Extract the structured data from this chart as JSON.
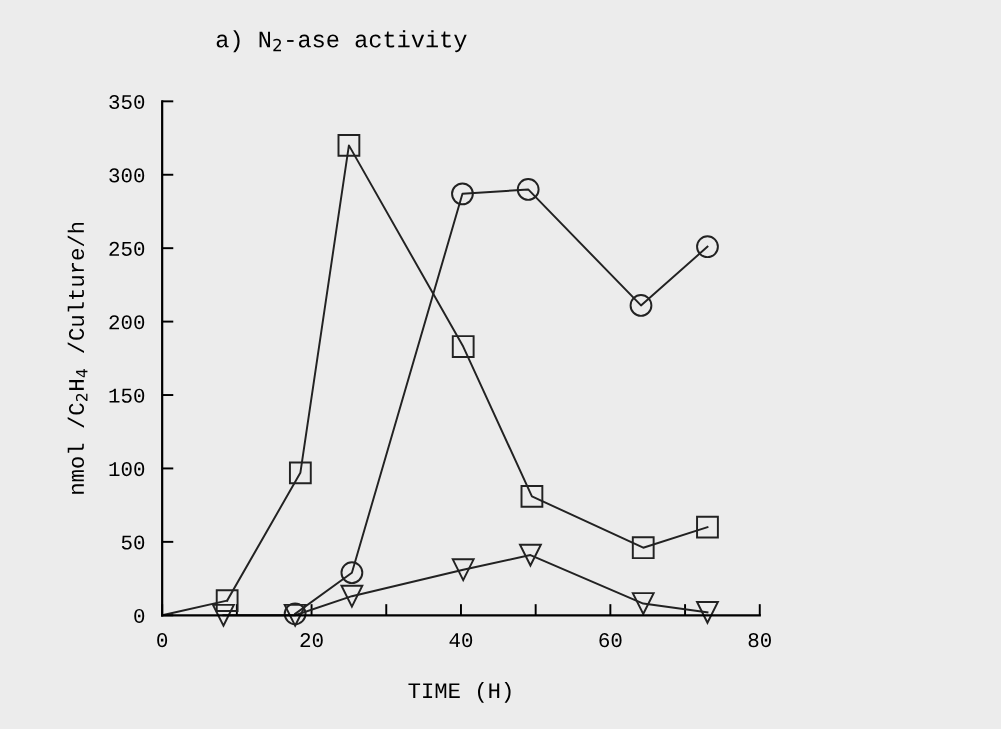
{
  "chart_data": {
    "type": "line",
    "title": "a) N$_{2}$-ase activity",
    "xlabel": "TIME (H)",
    "ylabel": "nmol /C$_{2}$H$_{4}$ /Culture/h",
    "series": [
      {
        "color": "#222222",
        "marker": "square",
        "x": [
          8.7,
          18.5,
          25,
          40.3,
          49.5,
          64.4,
          73
        ],
        "values": [
          10,
          97,
          320,
          183,
          81,
          46,
          60
        ]
      },
      {
        "color": "#222222",
        "marker": "circle",
        "x": [
          17.8,
          25.4,
          40.2,
          49,
          64.1,
          73
        ],
        "values": [
          1,
          29,
          287,
          290,
          211,
          251
        ]
      },
      {
        "color": "#222222",
        "marker": "triangle",
        "x": [
          8.2,
          17.8,
          25.4,
          40.3,
          49.3,
          64.4,
          73
        ],
        "values": [
          0,
          0,
          13,
          31,
          41,
          8,
          2
        ]
      },
      {
        "color": "#222222",
        "marker": "none",
        "x": [
          0,
          8.7
        ],
        "values": [
          0,
          10
        ]
      }
    ],
    "xlim": [
      0,
      80
    ],
    "ylim": [
      0,
      350
    ],
    "xticks": [
      0,
      {
        "value": 10,
        "label": null
      },
      20,
      {
        "value": 30,
        "label": null
      },
      40,
      {
        "value": 50,
        "label": null
      },
      60,
      {
        "value": 70,
        "label": null
      },
      80
    ],
    "yticks": [
      0,
      50,
      100,
      150,
      200,
      250,
      300,
      350
    ],
    "line_style": "solid"
  }
}
